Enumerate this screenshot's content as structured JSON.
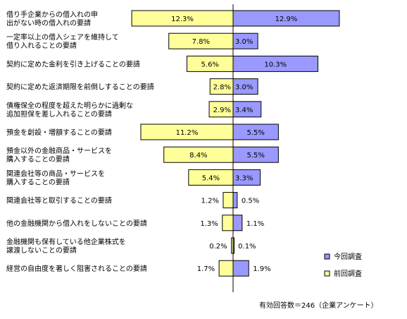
{
  "chart_data": {
    "type": "bar",
    "orientation": "horizontal-diverging",
    "categories": [
      "借り手企業からの借入れの申\n出がない時の借入れの要請",
      "一定率以上の借入シェアを維持して\n借り入れることの要請",
      "契約に定めた金利を引き上げることの要請",
      "契約に定めた返済期限を前倒しすることの要請",
      "債権保全の程度を超えた明らかに過剰な\n追加担保を差し入れることの要請",
      "預金を創設・増額することの要請",
      "預金以外の金融商品・サービスを\n購入することの要請",
      "関連会社等の商品・サービスを\n購入することの要請",
      "関連会社等と取引することの要請",
      "他の金融機関から借入れをしないことの要請",
      "金融機関も保有している他企業株式を\n譲渡しないことの要請",
      "経営の自由度を著しく阻害されることの要請"
    ],
    "series": [
      {
        "name": "前回調査",
        "color": "#ffff99",
        "direction": "left",
        "values": [
          12.3,
          7.8,
          5.6,
          2.8,
          2.9,
          11.2,
          8.4,
          5.4,
          1.2,
          1.3,
          0.2,
          1.7
        ],
        "labels": [
          "12.3%",
          "7.8%",
          "5.6%",
          "2.8%",
          "2.9%",
          "11.2%",
          "8.4%",
          "5.4%",
          "1.2%",
          "1.3%",
          "0.2%",
          "1.7%"
        ]
      },
      {
        "name": "今回調査",
        "color": "#9999ff",
        "direction": "right",
        "values": [
          12.9,
          3.0,
          10.3,
          3.0,
          3.4,
          5.5,
          5.5,
          3.3,
          0.5,
          1.1,
          0.1,
          1.9
        ],
        "labels": [
          "12.9%",
          "3.0%",
          "10.3%",
          "3.0%",
          "3.4%",
          "5.5%",
          "5.5%",
          "3.3%",
          "0.5%",
          "1.1%",
          "0.1%",
          "1.9%"
        ]
      }
    ],
    "legend_position": "right",
    "grid": false
  },
  "footnote": "有効回答数＝246（企業アンケート）"
}
